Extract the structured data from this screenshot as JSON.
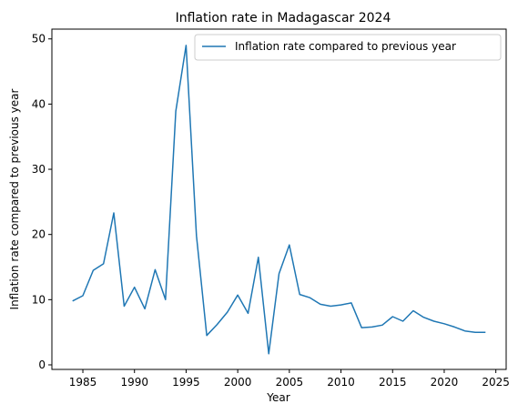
{
  "chart_data": {
    "type": "line",
    "title": "Inflation rate in Madagascar 2024",
    "xlabel": "Year",
    "ylabel": "Inflation rate compared to previous year",
    "xlim": [
      1982,
      2026
    ],
    "ylim": [
      -0.7,
      51.5
    ],
    "xticks": [
      1985,
      1990,
      1995,
      2000,
      2005,
      2010,
      2015,
      2020,
      2025
    ],
    "yticks": [
      0,
      10,
      20,
      30,
      40,
      50
    ],
    "grid": false,
    "legend_position": "top-right",
    "colors": {
      "series": "#1f77b4",
      "axes": "#000000",
      "background": "#ffffff"
    },
    "series": [
      {
        "name": "Inflation rate compared to previous year",
        "x": [
          1984,
          1985,
          1986,
          1987,
          1988,
          1989,
          1990,
          1991,
          1992,
          1993,
          1994,
          1995,
          1996,
          1997,
          1998,
          1999,
          2000,
          2001,
          2002,
          2003,
          2004,
          2005,
          2006,
          2007,
          2008,
          2009,
          2010,
          2011,
          2012,
          2013,
          2014,
          2015,
          2016,
          2017,
          2018,
          2019,
          2020,
          2021,
          2022,
          2023,
          2024
        ],
        "values": [
          9.8,
          10.6,
          14.5,
          15.5,
          23.3,
          9.0,
          11.9,
          8.6,
          14.6,
          10.0,
          38.9,
          49.0,
          19.8,
          4.5,
          6.2,
          8.1,
          10.7,
          7.9,
          16.5,
          1.7,
          14.0,
          18.4,
          10.8,
          10.3,
          9.3,
          9.0,
          9.2,
          9.5,
          5.7,
          5.8,
          6.1,
          7.4,
          6.7,
          8.3,
          7.3,
          6.7,
          6.3,
          5.8,
          5.2,
          5.0,
          5.0
        ]
      }
    ]
  }
}
